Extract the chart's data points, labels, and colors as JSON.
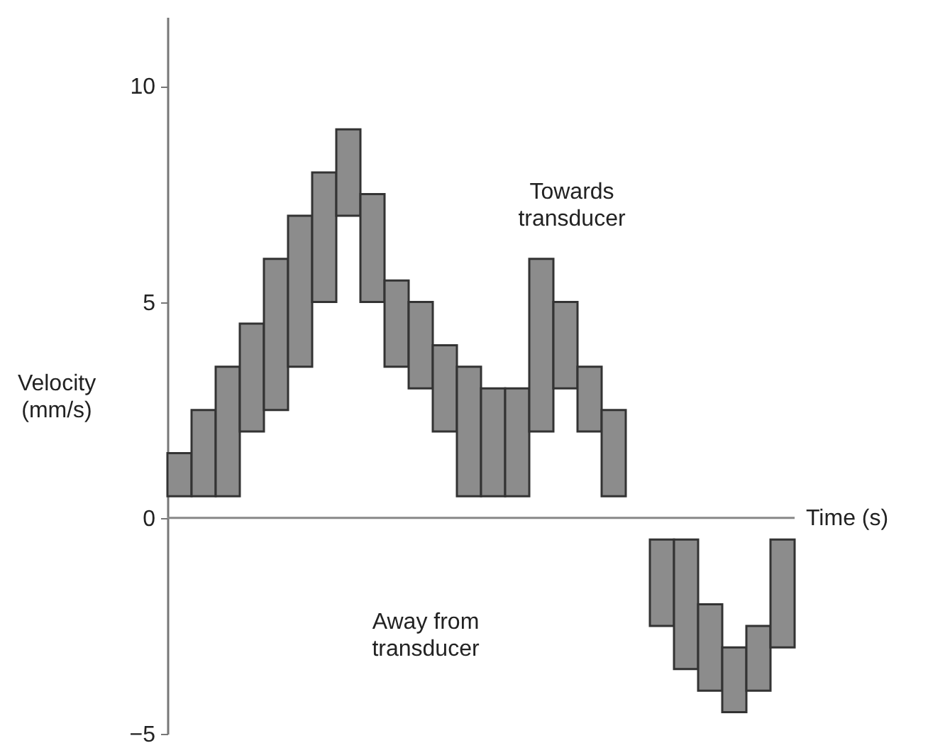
{
  "chart_data": {
    "type": "bar",
    "categories": [
      null,
      null,
      null,
      null,
      null,
      null,
      null,
      null,
      null,
      null,
      null,
      null,
      null,
      null,
      null,
      null,
      null,
      null,
      null,
      null,
      null,
      null,
      null,
      null,
      null,
      null
    ],
    "base": [
      0.5,
      0.5,
      0.5,
      2.0,
      2.5,
      3.5,
      5.0,
      7.0,
      5.0,
      3.5,
      3.0,
      2.0,
      0.5,
      0.5,
      0.5,
      2.0,
      3.0,
      2.0,
      0.5,
      null,
      -2.5,
      -3.5,
      -4.0,
      -4.5,
      -4.0,
      -3.0
    ],
    "values": [
      1,
      2,
      3,
      2.5,
      3.5,
      3.5,
      3,
      2,
      2.5,
      2,
      2,
      2,
      3,
      2.5,
      2.5,
      4,
      2,
      1.5,
      2,
      null,
      2,
      3,
      2,
      1.5,
      1.5,
      2.5
    ],
    "color": "#8c8c8c",
    "ylim": [
      -5,
      11.6
    ],
    "yticks": [
      {
        "value": -5,
        "label": "−5"
      },
      0,
      5,
      10
    ],
    "ylabel": "Velocity (mm/s)",
    "xlabel": "Time (s)",
    "annotations": [
      "Towards transducer",
      "Away from transducer"
    ]
  }
}
